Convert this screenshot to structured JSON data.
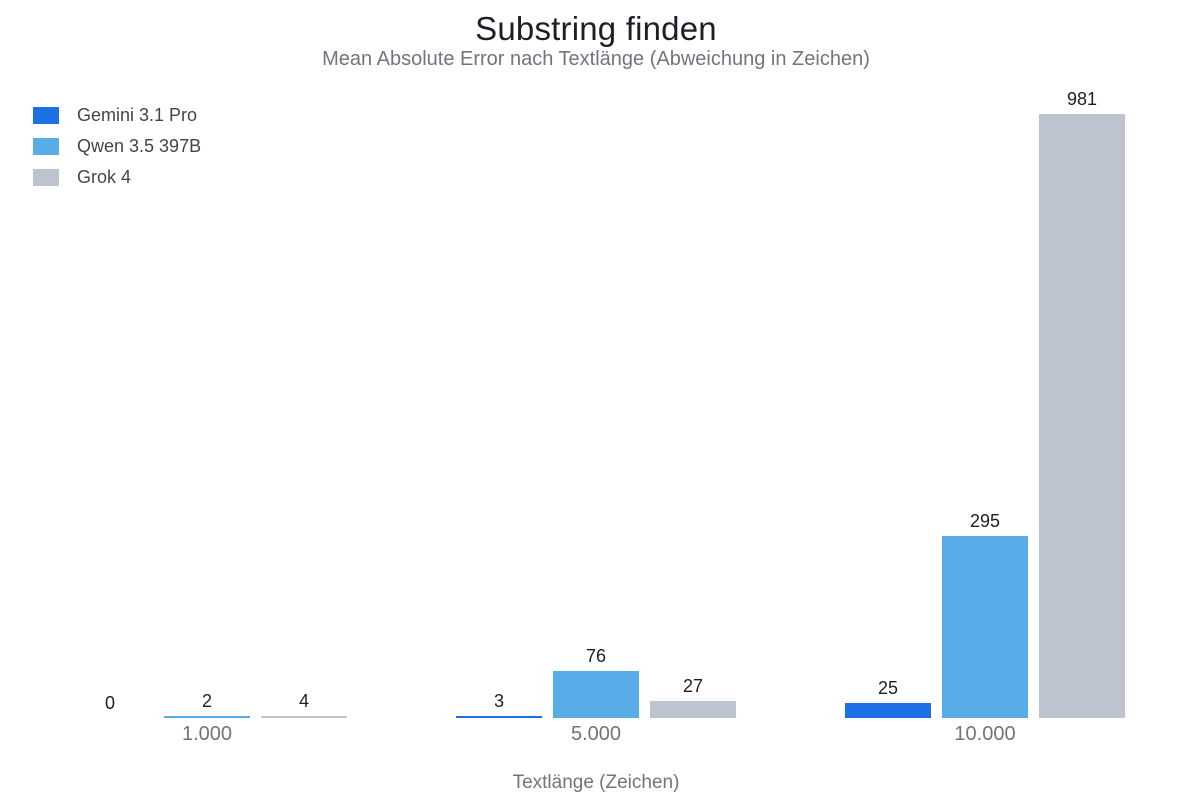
{
  "title": "Substring finden",
  "subtitle": "Mean Absolute Error nach Textlänge (Abweichung in Zeichen)",
  "legend": [
    {
      "label": "Gemini 3.1 Pro",
      "color": "#1d70e4"
    },
    {
      "label": "Qwen 3.5 397B",
      "color": "#58ade9"
    },
    {
      "label": "Grok 4",
      "color": "#bec4cf"
    }
  ],
  "chart_data": {
    "type": "bar",
    "title": "Substring finden",
    "subtitle": "Mean Absolute Error nach Textlänge (Abweichung in Zeichen)",
    "categories": [
      "1.000",
      "5.000",
      "10.000"
    ],
    "series": [
      {
        "name": "Gemini 3.1 Pro",
        "color": "#1d70e4",
        "values": [
          0,
          3,
          25
        ]
      },
      {
        "name": "Qwen 3.5 397B",
        "color": "#58ade9",
        "values": [
          2,
          76,
          295
        ]
      },
      {
        "name": "Grok 4",
        "color": "#bec4cf",
        "values": [
          4,
          27,
          981
        ]
      }
    ],
    "xlabel": "Textlänge (Zeichen)",
    "ylabel": "",
    "ylim": [
      0,
      981
    ],
    "grid": false,
    "axis_lines": false,
    "legend_position": "top-left",
    "value_labels": true,
    "value_label_color": "#1c2026",
    "background": "#ffffff"
  }
}
